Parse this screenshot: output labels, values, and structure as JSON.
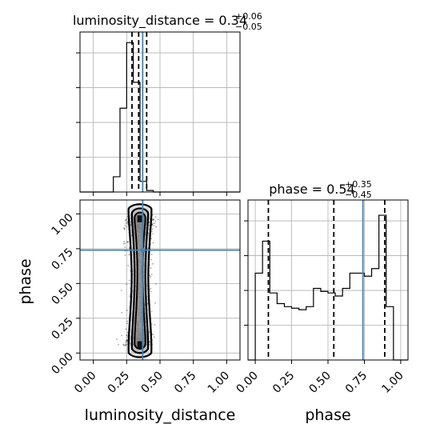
{
  "chart_data": {
    "type": "corner",
    "parameters": [
      "luminosity_distance",
      "phase"
    ],
    "truths": {
      "luminosity_distance": 0.37,
      "phase": 0.74
    },
    "panels": [
      {
        "id": "hist_luminosity_distance",
        "type": "histogram",
        "title_name": "luminosity_distance",
        "title_value": "0.34",
        "title_plus": "+0.06",
        "title_minus": "−0.05",
        "xlim": [
          -0.1,
          1.1
        ],
        "bin_edges": [
          0.0,
          0.05,
          0.1,
          0.15,
          0.2,
          0.25,
          0.3,
          0.35,
          0.4,
          0.45,
          0.5,
          0.55,
          0.6
        ],
        "density": [
          0,
          0,
          0,
          0.1,
          0.55,
          0.98,
          0.72,
          0.07,
          0.01,
          0,
          0,
          0
        ],
        "quantiles": [
          0.29,
          0.34,
          0.4
        ],
        "truth": 0.37
      },
      {
        "id": "hist_phase",
        "type": "histogram",
        "title_name": "phase",
        "title_value": "0.54",
        "title_plus": "+0.35",
        "title_minus": "−0.45",
        "xlim": [
          -0.05,
          1.05
        ],
        "bin_edges": [
          0.0,
          0.05,
          0.1,
          0.15,
          0.2,
          0.25,
          0.3,
          0.35,
          0.4,
          0.45,
          0.5,
          0.55,
          0.6,
          0.65,
          0.7,
          0.75,
          0.8,
          0.85,
          0.9,
          0.95,
          1.0
        ],
        "density": [
          0.57,
          0.78,
          0.44,
          0.37,
          0.35,
          0.34,
          0.33,
          0.35,
          0.47,
          0.45,
          0.44,
          0.42,
          0.47,
          0.57,
          0.57,
          0.55,
          0.6,
          0.95,
          0.35,
          0.0
        ],
        "quantiles": [
          0.09,
          0.54,
          0.89
        ],
        "truth": 0.74
      },
      {
        "id": "scatter_2d",
        "type": "scatter_contour",
        "x_param": "luminosity_distance",
        "y_param": "phase",
        "xlim": [
          -0.1,
          1.1
        ],
        "ylim": [
          -0.05,
          1.1
        ],
        "x_ticks": [
          0.0,
          0.25,
          0.5,
          0.75,
          1.0
        ],
        "y_ticks": [
          0.0,
          0.25,
          0.5,
          0.75,
          1.0
        ],
        "x_tick_labels": [
          "0.00",
          "0.25",
          "0.50",
          "0.75",
          "1.00"
        ],
        "y_tick_labels": [
          "0.00",
          "0.25",
          "0.50",
          "0.75",
          "1.00"
        ],
        "xlabel": "luminosity_distance",
        "ylabel": "phase"
      }
    ],
    "phase_x_ticks": [
      0.0,
      0.25,
      0.5,
      0.75,
      1.0
    ],
    "phase_x_tick_labels": [
      "0.00",
      "0.25",
      "0.50",
      "0.75",
      "1.00"
    ],
    "phase_xlabel": "phase",
    "colors": {
      "truth": "#4682b4",
      "line": "#000000",
      "grid": "#b0b0b0",
      "points": "#000000",
      "contour_fill": "#bdbdbd"
    },
    "grid": true
  }
}
